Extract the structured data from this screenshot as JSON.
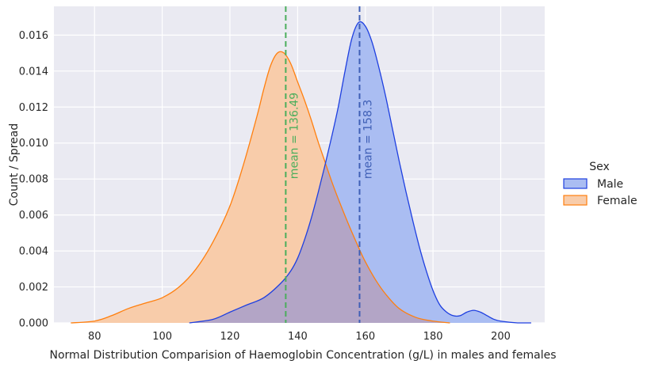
{
  "chart_data": {
    "type": "area",
    "xlabel": "Normal Distribution Comparision of Haemoglobin Concentration (g/L) in males and females",
    "ylabel": "Count / Spread",
    "xlim": [
      68,
      213
    ],
    "ylim": [
      0,
      0.0176
    ],
    "xticks": [
      80,
      100,
      120,
      140,
      160,
      180,
      200
    ],
    "yticks": [
      0.0,
      0.002,
      0.004,
      0.006,
      0.008,
      0.01,
      0.012,
      0.014,
      0.016
    ],
    "ytick_labels": [
      "0.000",
      "0.002",
      "0.004",
      "0.006",
      "0.008",
      "0.010",
      "0.012",
      "0.014",
      "0.016"
    ],
    "grid": true,
    "legend": {
      "title": "Sex",
      "position": "right",
      "entries": [
        "Male",
        "Female"
      ]
    },
    "series": [
      {
        "name": "Male",
        "line_color": "#1e3fe0",
        "fill_color": "#aabdf2",
        "x": [
          108,
          115,
          120,
          125,
          130,
          135,
          138,
          140,
          142,
          144,
          146,
          148,
          150,
          152,
          154,
          156,
          158,
          160,
          162,
          164,
          166,
          168,
          170,
          172,
          174,
          176,
          178,
          180,
          182,
          184,
          186,
          188,
          190,
          192,
          194,
          196,
          198,
          200,
          205,
          209
        ],
        "y": [
          0.0,
          0.0002,
          0.0006,
          0.001,
          0.0014,
          0.0022,
          0.0029,
          0.0036,
          0.0046,
          0.0058,
          0.0072,
          0.0087,
          0.0103,
          0.012,
          0.014,
          0.0158,
          0.0167,
          0.0165,
          0.0156,
          0.0142,
          0.0126,
          0.0108,
          0.009,
          0.0073,
          0.0057,
          0.0042,
          0.0029,
          0.0018,
          0.001,
          0.0006,
          0.0004,
          0.0004,
          0.0006,
          0.0007,
          0.0006,
          0.0004,
          0.0002,
          0.0001,
          0.0,
          0.0
        ]
      },
      {
        "name": "Female",
        "line_color": "#ff7f0e",
        "fill_color": "#f8ccaa",
        "x": [
          73,
          80,
          85,
          90,
          95,
          100,
          105,
          110,
          115,
          120,
          124,
          128,
          130,
          132,
          134,
          136,
          138,
          140,
          142,
          144,
          146,
          148,
          150,
          152,
          155,
          158,
          160,
          163,
          166,
          170,
          175,
          180,
          185
        ],
        "y": [
          0.0,
          0.0001,
          0.0004,
          0.0008,
          0.0011,
          0.0014,
          0.002,
          0.003,
          0.0045,
          0.0065,
          0.0088,
          0.0115,
          0.013,
          0.0143,
          0.015,
          0.015,
          0.0144,
          0.0134,
          0.0124,
          0.0113,
          0.0101,
          0.009,
          0.0079,
          0.0069,
          0.0055,
          0.0042,
          0.0034,
          0.0024,
          0.0016,
          0.0008,
          0.0003,
          0.0001,
          0.0
        ]
      }
    ],
    "overlap_color": "#b3a5c6",
    "mean_lines": [
      {
        "series": "Male",
        "value": 158.3,
        "label": "mean = 158.3",
        "color": "#3f5fb6"
      },
      {
        "series": "Female",
        "value": 136.49,
        "label": "mean = 136.49",
        "color": "#4bae5c"
      }
    ]
  }
}
